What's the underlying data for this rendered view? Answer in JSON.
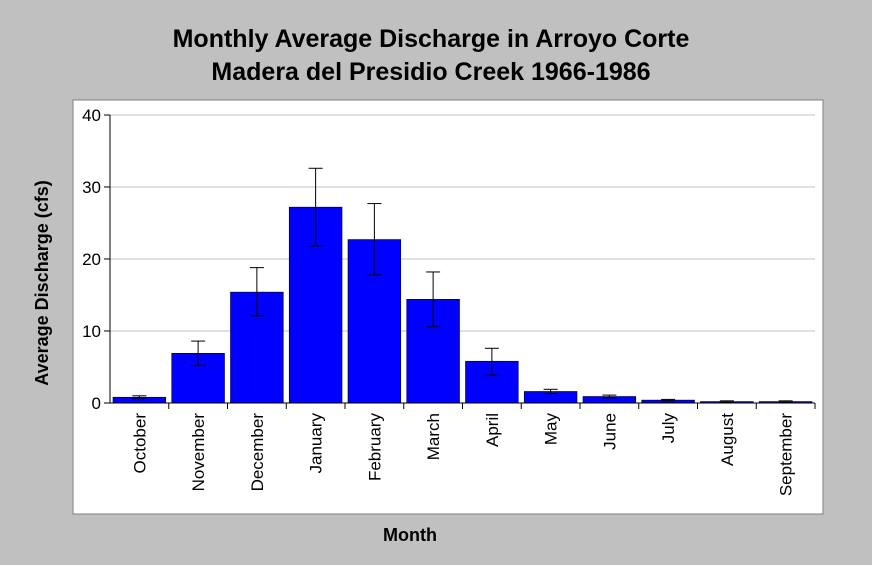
{
  "chart_data": {
    "type": "bar",
    "title": "Monthly Average Discharge in Arroyo Corte Madera del Presidio Creek 1966-1986",
    "title_lines": [
      "Monthly Average Discharge in Arroyo Corte",
      "Madera del Presidio Creek 1966-1986"
    ],
    "xlabel": "Month",
    "ylabel": "Average Discharge (cfs)",
    "ylim": [
      0,
      40
    ],
    "yticks": [
      0,
      10,
      20,
      30,
      40
    ],
    "ytick_labels": [
      "0",
      "10",
      "20",
      "30",
      "40"
    ],
    "grid": "horizontal",
    "categories": [
      "October",
      "November",
      "December",
      "January",
      "February",
      "March",
      "April",
      "May",
      "June",
      "July",
      "August",
      "September"
    ],
    "values": [
      0.8,
      6.9,
      15.4,
      27.2,
      22.7,
      14.4,
      5.8,
      1.6,
      0.9,
      0.4,
      0.2,
      0.2
    ],
    "error_low": [
      0.6,
      5.2,
      12.1,
      21.8,
      17.8,
      10.6,
      3.9,
      1.3,
      0.7,
      0.3,
      0.1,
      0.1
    ],
    "error_high": [
      1.0,
      8.6,
      18.8,
      32.6,
      27.7,
      18.2,
      7.6,
      1.9,
      1.1,
      0.5,
      0.3,
      0.3
    ]
  },
  "colors": {
    "bar_fill": "#0000ff",
    "bar_stroke": "#000000",
    "plot_background": "#ffffff",
    "page_background": "#c0c0c0",
    "gridline": "#c0c0c0"
  }
}
